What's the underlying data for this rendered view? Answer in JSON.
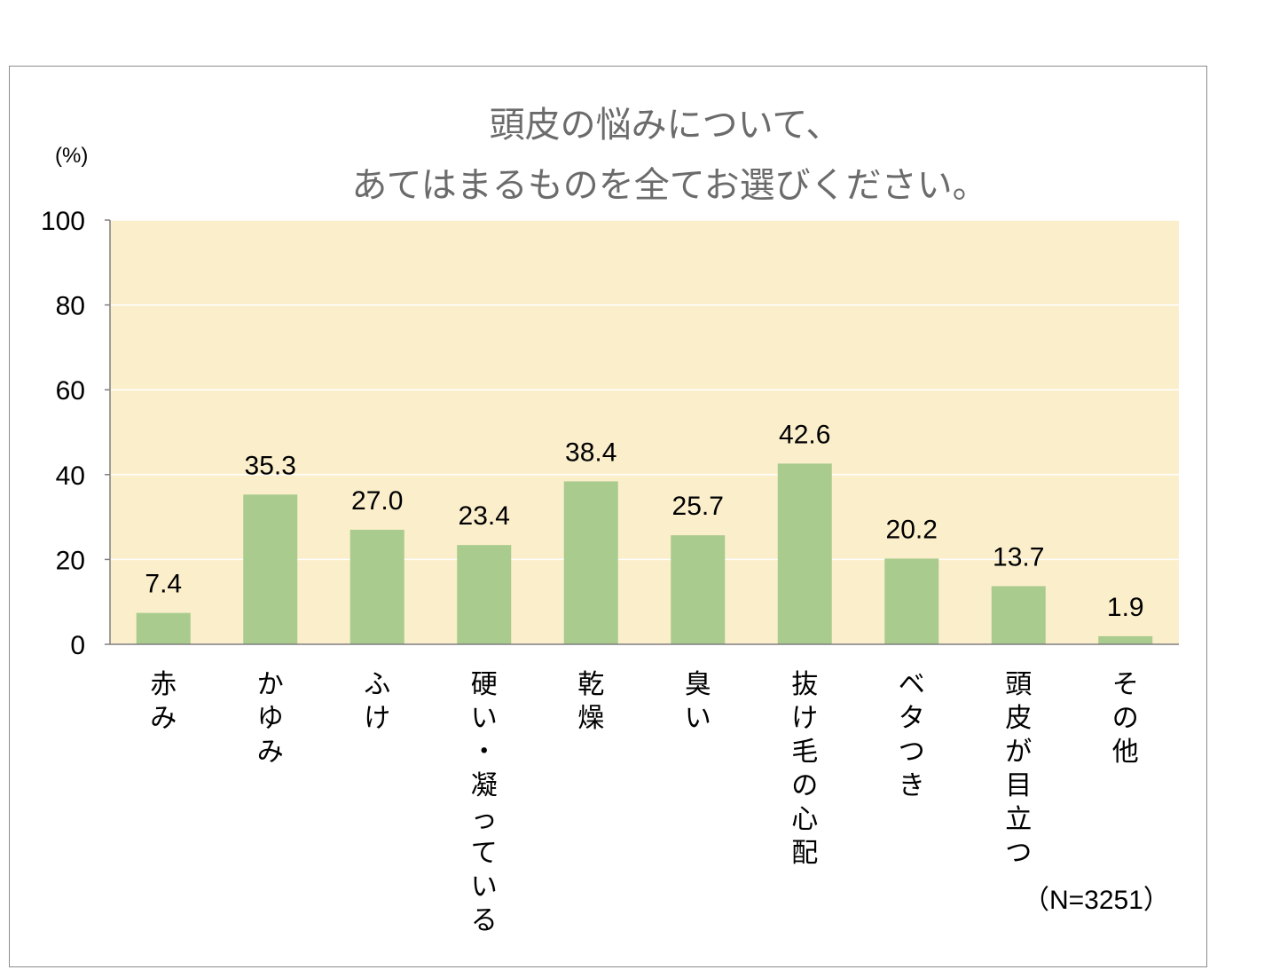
{
  "chart_data": {
    "type": "bar",
    "title": [
      "頭皮の悩みについて、",
      "あてはまるものを全てお選びください。"
    ],
    "ylabel": "(%)",
    "ylim": [
      0,
      100
    ],
    "yticks": [
      0,
      20,
      40,
      60,
      80,
      100
    ],
    "categories": [
      "赤み",
      "かゆみ",
      "ふけ",
      "硬い・凝っている",
      "乾燥",
      "臭い",
      "抜け毛の心配",
      "ベタつき",
      "頭皮が目立つ",
      "その他"
    ],
    "values": [
      7.4,
      35.3,
      27.0,
      23.4,
      38.4,
      25.7,
      42.6,
      20.2,
      13.7,
      1.9
    ],
    "value_labels": [
      "7.4",
      "35.3",
      "27.0",
      "23.4",
      "38.4",
      "25.7",
      "42.6",
      "20.2",
      "13.7",
      "1.9"
    ],
    "note": "（N=3251）",
    "grid": true,
    "legend": "none",
    "colors": {
      "bar": "#a9cb8d",
      "plot_bg": "#fbeecb",
      "grid": "#ffffff",
      "axis": "#7f7f7f",
      "title": "#6b6b6b"
    }
  }
}
